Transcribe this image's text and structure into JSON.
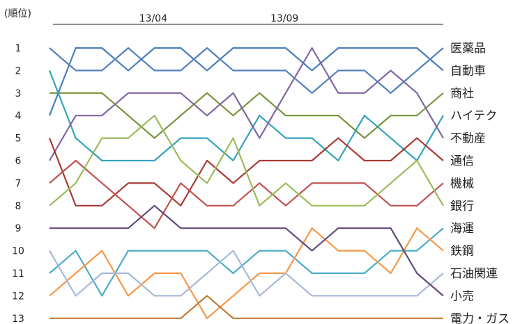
{
  "chart_data": {
    "type": "line",
    "title": "",
    "ylabel": "(順位)",
    "xlabel": "",
    "x_tick_labels": [
      {
        "index": 4,
        "label": "13/04"
      },
      {
        "index": 9,
        "label": "13/09"
      }
    ],
    "x_count": 16,
    "ylim": [
      1,
      13
    ],
    "y_inverted": true,
    "y_ticks": [
      1,
      2,
      3,
      4,
      5,
      6,
      7,
      8,
      9,
      10,
      11,
      12,
      13
    ],
    "legend_placement": "right, aligned to final ranks",
    "grid": false,
    "series": [
      {
        "name": "医薬品",
        "color": "#4f81bd",
        "values": [
          1,
          2,
          2,
          1,
          2,
          2,
          1,
          2,
          2,
          2,
          3,
          2,
          2,
          3,
          2,
          1
        ]
      },
      {
        "name": "自動車",
        "color": "#4a7dbd",
        "values": [
          4,
          1,
          1,
          2,
          1,
          1,
          2,
          1,
          1,
          1,
          2,
          1,
          1,
          1,
          1,
          2
        ]
      },
      {
        "name": "商社",
        "color": "#77933c",
        "values": [
          3,
          3,
          3,
          4,
          5,
          4,
          3,
          4,
          3,
          4,
          4,
          4,
          5,
          4,
          4,
          3
        ]
      },
      {
        "name": "ハイテク",
        "color": "#31a4b8",
        "values": [
          2,
          5,
          6,
          6,
          6,
          5,
          5,
          6,
          4,
          5,
          5,
          6,
          4,
          5,
          6,
          4
        ]
      },
      {
        "name": "不動産",
        "color": "#8064a2",
        "values": [
          6,
          4,
          4,
          3,
          3,
          3,
          4,
          3,
          5,
          3,
          1,
          3,
          3,
          2,
          3,
          5
        ]
      },
      {
        "name": "通信",
        "color": "#a83a35",
        "values": [
          5,
          8,
          8,
          7,
          7,
          8,
          6,
          7,
          6,
          6,
          6,
          5,
          6,
          6,
          5,
          6
        ]
      },
      {
        "name": "機械",
        "color": "#c0504d",
        "values": [
          7,
          6,
          7,
          8,
          9,
          7,
          8,
          8,
          7,
          8,
          7,
          7,
          7,
          8,
          8,
          7
        ]
      },
      {
        "name": "銀行",
        "color": "#9bbb59",
        "values": [
          8,
          7,
          5,
          5,
          4,
          6,
          7,
          5,
          8,
          7,
          8,
          8,
          8,
          7,
          6,
          8
        ]
      },
      {
        "name": "海運",
        "color": "#4bacc6",
        "values": [
          11,
          10,
          12,
          10,
          10,
          10,
          10,
          11,
          10,
          10,
          11,
          11,
          11,
          10,
          10,
          9
        ]
      },
      {
        "name": "鉄鋼",
        "color": "#f79646",
        "values": [
          12,
          11,
          10,
          12,
          11,
          11,
          13,
          12,
          11,
          11,
          9,
          10,
          10,
          11,
          9,
          10
        ]
      },
      {
        "name": "石油関連",
        "color": "#a8b8d8",
        "values": [
          10,
          12,
          11,
          11,
          12,
          12,
          11,
          10,
          12,
          11,
          12,
          12,
          12,
          12,
          12,
          11
        ]
      },
      {
        "name": "小売",
        "color": "#604a7b",
        "values": [
          9,
          9,
          9,
          9,
          8,
          9,
          9,
          9,
          9,
          9,
          10,
          9,
          9,
          9,
          11,
          12
        ]
      },
      {
        "name": "電力・ガス",
        "color": "#c07a33",
        "values": [
          13,
          13,
          13,
          13,
          13,
          13,
          12,
          13,
          13,
          13,
          13,
          13,
          13,
          13,
          13,
          13
        ]
      }
    ]
  }
}
